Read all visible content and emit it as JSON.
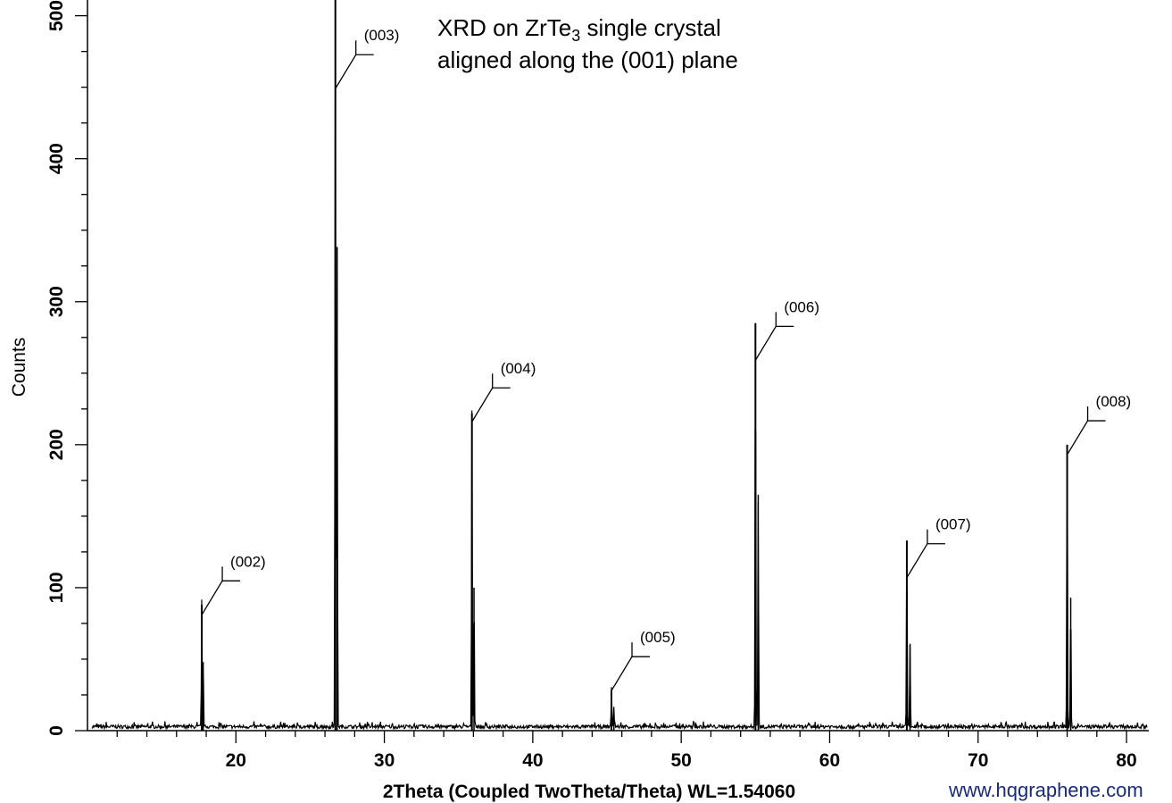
{
  "chart_data": {
    "type": "line",
    "title_line1_prefix": "XRD on ZrTe",
    "title_subscript": "3",
    "title_line1_suffix": " single crystal",
    "title_line2": "aligned along the (001) plane",
    "xlabel": "2Theta (Coupled TwoTheta/Theta) WL=1.54060",
    "ylabel": "Counts",
    "xlim": [
      10,
      81.5
    ],
    "ylim": [
      0,
      511
    ],
    "xticks": [
      20,
      30,
      40,
      50,
      60,
      70,
      80
    ],
    "yticks": [
      0,
      100,
      200,
      300,
      400,
      500
    ],
    "grid": false,
    "peaks": [
      {
        "label": "(002)",
        "x": 17.7,
        "y": 88,
        "shoulder": 48,
        "ann_y": 81
      },
      {
        "label": "(003)",
        "x": 26.7,
        "y": 560,
        "shoulder": 338,
        "ann_y": 449
      },
      {
        "label": "(004)",
        "x": 35.9,
        "y": 222,
        "shoulder": 100,
        "ann_y": 216
      },
      {
        "label": "(005)",
        "x": 45.3,
        "y": 28,
        "shoulder": 15,
        "ann_y": 28
      },
      {
        "label": "(006)",
        "x": 55.0,
        "y": 285,
        "shoulder": 165,
        "ann_y": 259
      },
      {
        "label": "(007)",
        "x": 65.2,
        "y": 133,
        "shoulder": 60,
        "ann_y": 107
      },
      {
        "label": "(008)",
        "x": 76.0,
        "y": 200,
        "shoulder": 93,
        "ann_y": 193
      }
    ],
    "baseline_counts": 1.5
  },
  "watermark": "www.hqgraphene.com"
}
